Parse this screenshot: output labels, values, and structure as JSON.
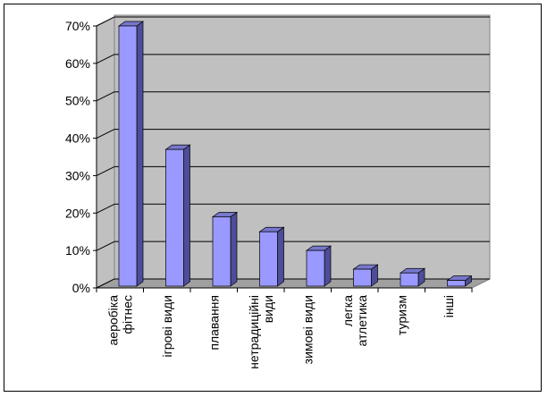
{
  "chart_data": {
    "type": "bar3d",
    "categories": [
      "аеробіка\nфітнес",
      "ігрові види",
      "плавання",
      "нетрадиційні\nвиди",
      "зимові види",
      "легка\nатлетика",
      "туризм",
      "інші"
    ],
    "values": [
      70,
      37,
      19,
      15,
      10,
      5,
      4,
      2
    ],
    "color": "#9999ff",
    "ylim": [
      0,
      70
    ],
    "yticks": [
      {
        "value": 0,
        "label": "0%"
      },
      {
        "value": 10,
        "label": "10%"
      },
      {
        "value": 20,
        "label": "20%"
      },
      {
        "value": 30,
        "label": "30%"
      },
      {
        "value": 40,
        "label": "40%"
      },
      {
        "value": 50,
        "label": "50%"
      },
      {
        "value": 60,
        "label": "60%"
      },
      {
        "value": 70,
        "label": "70%"
      }
    ],
    "grid": true
  }
}
